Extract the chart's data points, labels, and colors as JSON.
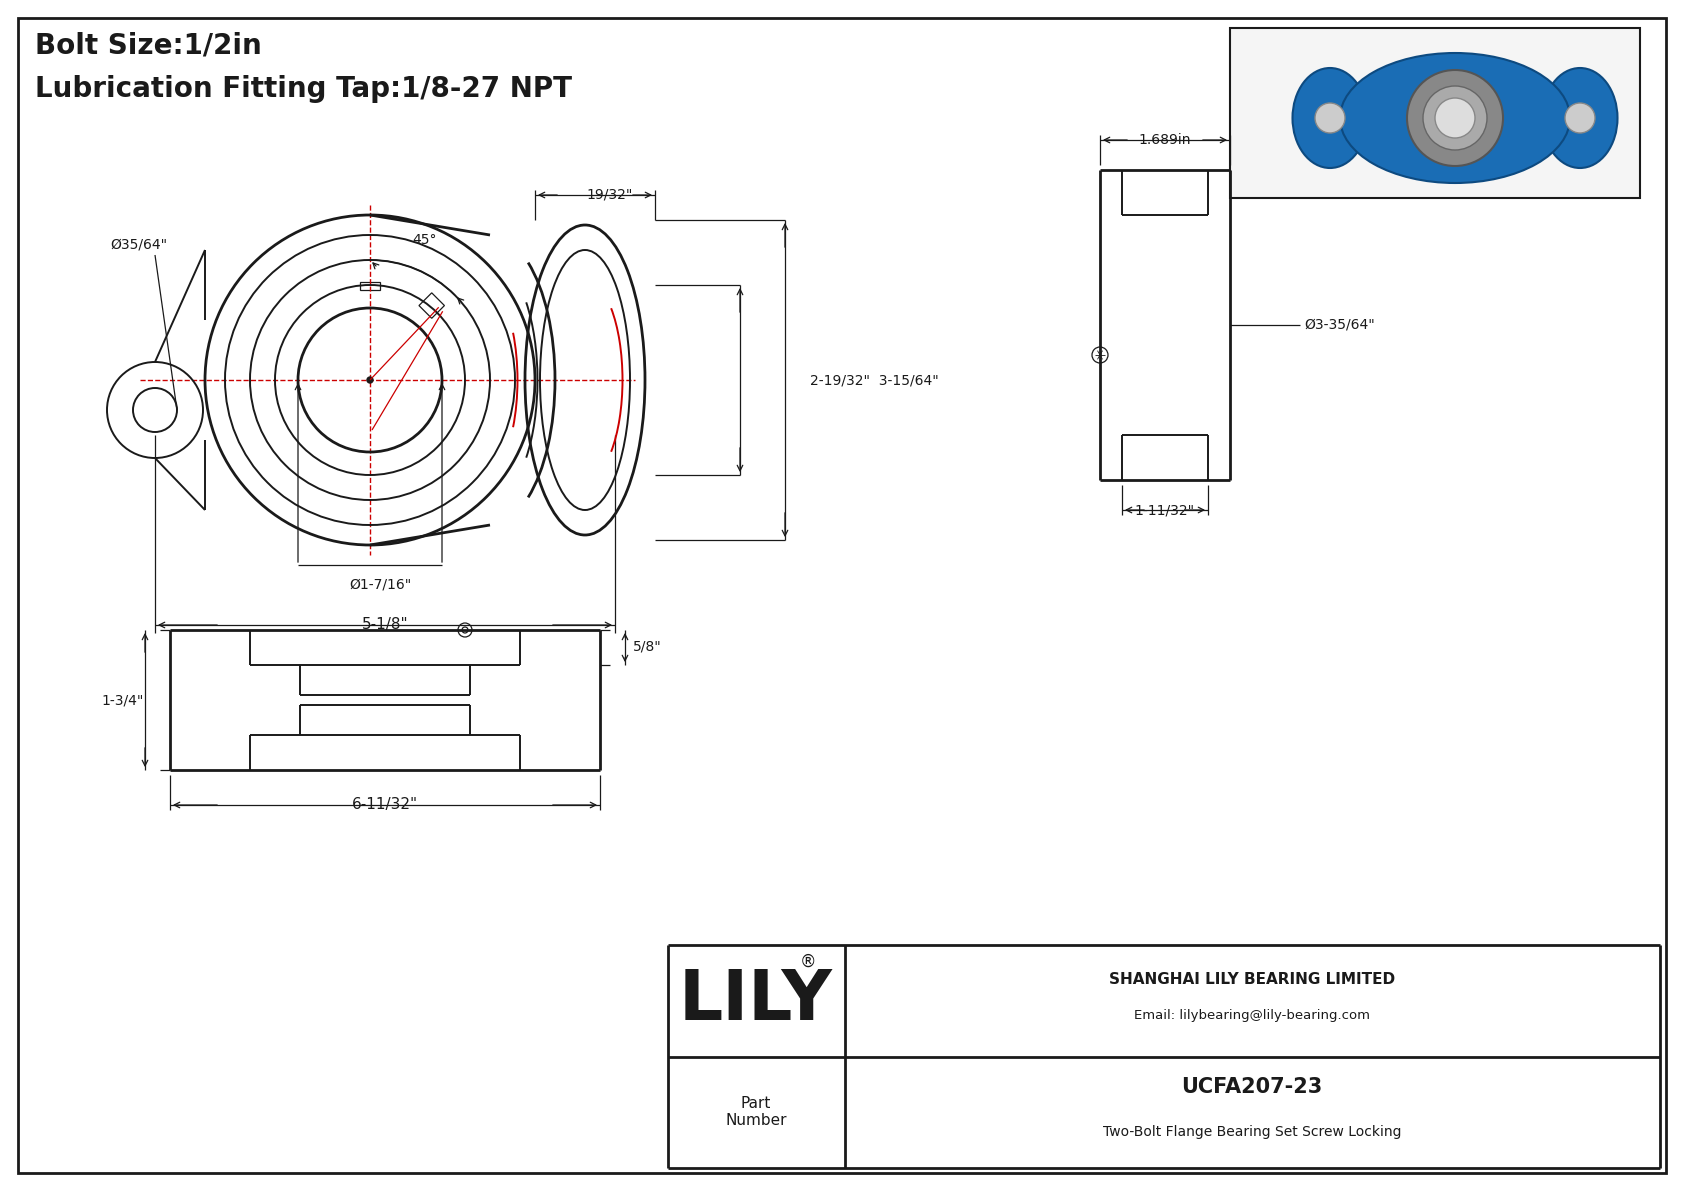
{
  "bg_color": "#ffffff",
  "line_color": "#1a1a1a",
  "red_color": "#cc0000",
  "title_line1": "Bolt Size:1/2in",
  "title_line2": "Lubrication Fitting Tap:1/8-27 NPT",
  "title_fontsize": 20,
  "company": "SHANGHAI LILY BEARING LIMITED",
  "email": "Email: lilybearing@lily-bearing.com",
  "lily_text": "LILY",
  "registered": "®",
  "part_label": "Part\nNumber",
  "part_number": "UCFA207-23",
  "part_desc": "Two-Bolt Flange Bearing Set Screw Locking",
  "dim_45": "45°",
  "dim_d35_64": "Ø35/64\"",
  "dim_d1_7_16": "Ø1-7/16\"",
  "dim_5_1_8": "5-1/8\"",
  "dim_19_32": "19/32\"",
  "dim_2_19_32": "2-19/32\"  3-15/64\"",
  "dim_1_689": "1.689in",
  "dim_d3_35_64": "Ø3-35/64\"",
  "dim_1_11_32": "1-11/32\"",
  "dim_1_3_4": "1-3/4\"",
  "dim_5_8": "5/8\"",
  "dim_6_11_32": "6-11/32\""
}
